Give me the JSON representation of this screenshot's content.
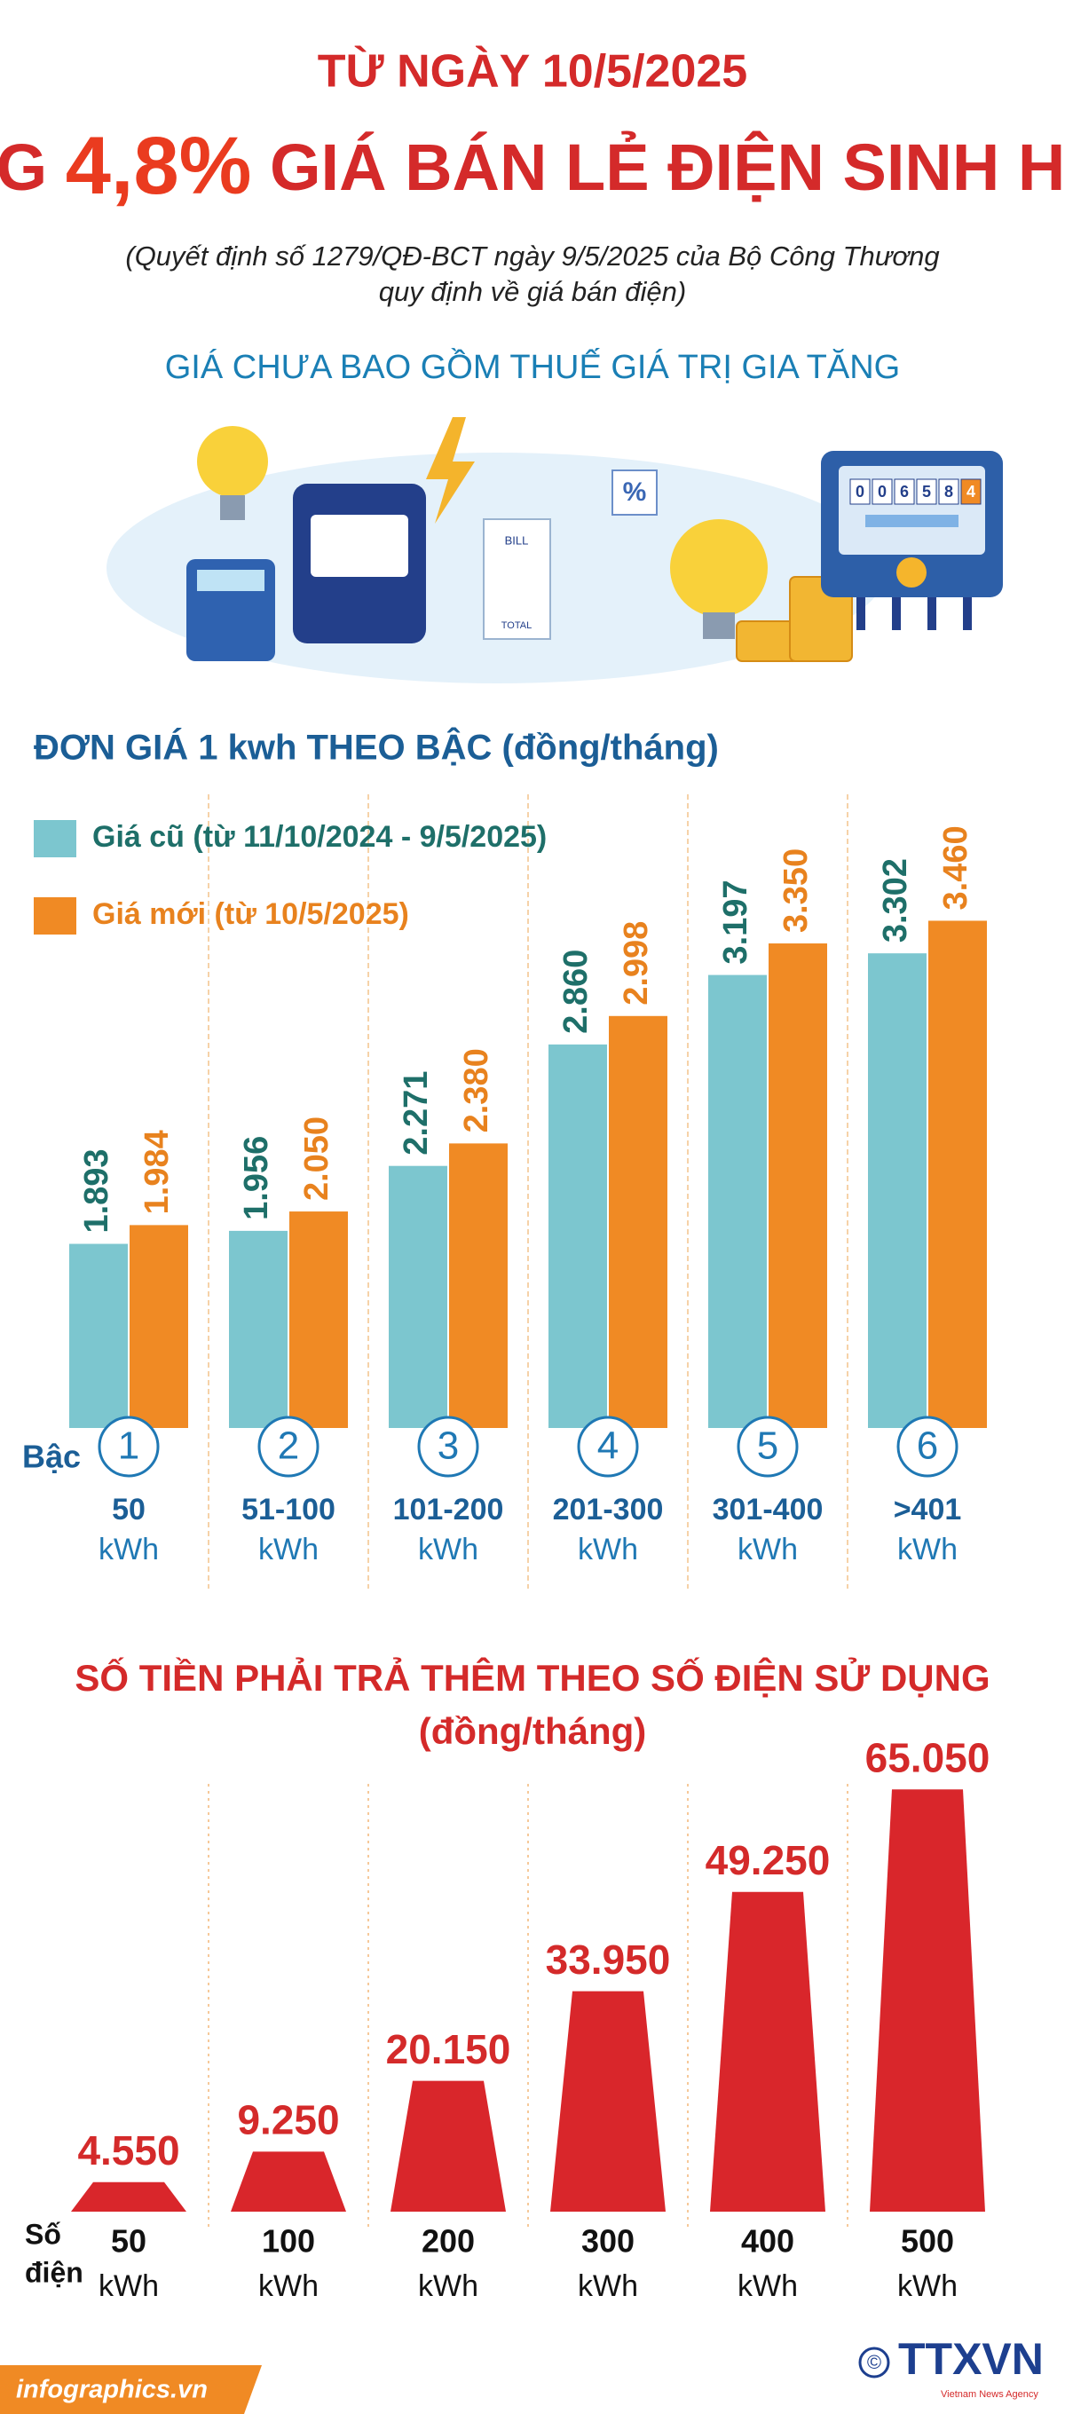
{
  "header": {
    "line1": "TỪ NGÀY 10/5/2025",
    "title_prefix": "TĂNG",
    "title_highlight": "4,8%",
    "title_suffix": "GIÁ BÁN LẺ ĐIỆN SINH HOẠT",
    "note_line1": "(Quyết định số 1279/QĐ-BCT ngày 9/5/2025 của Bộ Công Thương",
    "note_line2": "quy định về giá bán điện)",
    "subtitle": "GIÁ CHƯA BAO GỒM THUẾ GIÁ TRỊ GIA TĂNG"
  },
  "illustration": {
    "meter_digits": [
      "0",
      "0",
      "6",
      "5",
      "8",
      "4"
    ],
    "bill": "BILL",
    "total": "TOTAL",
    "percent": "%"
  },
  "chart_data": [
    {
      "type": "bar",
      "title": "ĐƠN GIÁ 1 kwh THEO BẬC (đồng/tháng)",
      "tier_label": "Bậc",
      "categories": [
        "1",
        "2",
        "3",
        "4",
        "5",
        "6"
      ],
      "ranges": [
        "50",
        "51-100",
        "101-200",
        "201-300",
        "301-400",
        ">401"
      ],
      "unit": "kWh",
      "series": [
        {
          "name": "Giá cũ (từ 11/10/2024 - 9/5/2025)",
          "color": "#7cc6cf",
          "values": [
            1893,
            1956,
            2271,
            2860,
            3197,
            3302
          ],
          "value_labels": [
            "1.893",
            "1.956",
            "2.271",
            "2.860",
            "3.197",
            "3.302"
          ]
        },
        {
          "name": "Giá mới (từ 10/5/2025)",
          "color": "#f08a24",
          "values": [
            1984,
            2050,
            2380,
            2998,
            3350,
            3460
          ],
          "value_labels": [
            "1.984",
            "2.050",
            "2.380",
            "2.998",
            "3.350",
            "3.460"
          ]
        }
      ],
      "ylim": [
        1000,
        4000
      ]
    },
    {
      "type": "bar",
      "shape": "trapezoid",
      "title": "SỐ TIỀN PHẢI TRẢ THÊM THEO SỐ ĐIỆN SỬ DỤNG",
      "unit_note": "(đồng/tháng)",
      "xlabel": [
        "Số",
        "điện"
      ],
      "categories": [
        "50",
        "100",
        "200",
        "300",
        "400",
        "500"
      ],
      "unit": "kWh",
      "values": [
        4550,
        9250,
        20150,
        33950,
        49250,
        65050
      ],
      "value_labels": [
        "4.550",
        "9.250",
        "20.150",
        "33.950",
        "49.250",
        "65.050"
      ],
      "color": "#d9262b",
      "ylim": [
        0,
        70000
      ]
    }
  ],
  "footer": {
    "site": "infographics.vn",
    "copyright": "©",
    "logo": "TTXVN",
    "agency": "Vietnam News Agency"
  }
}
